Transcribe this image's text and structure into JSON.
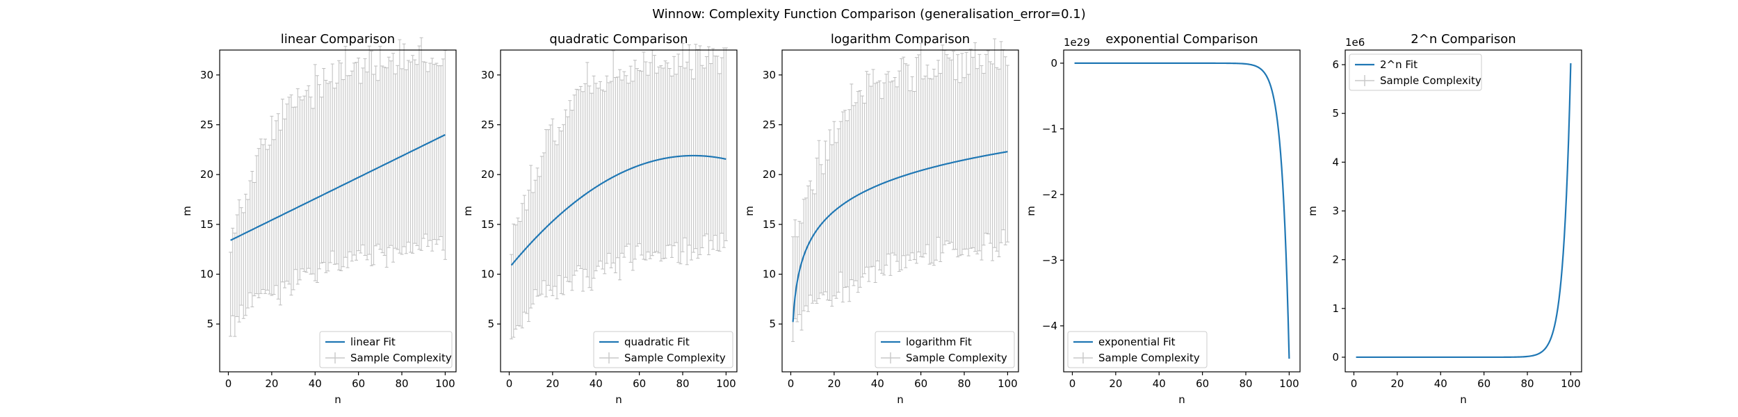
{
  "figure": {
    "suptitle": "Winnow: Complexity Function Comparison (generalisation_error=0.1)"
  },
  "colors": {
    "fit": "#1f77b4",
    "sample": "#c8c8c8",
    "sample_cap": "#bdbdbd"
  },
  "chart_data": [
    {
      "type": "line",
      "title": "linear Comparison",
      "xlabel": "n",
      "ylabel": "m",
      "xlim": [
        -4,
        105
      ],
      "ylim": [
        0.2,
        32.5
      ],
      "xticks": [
        "0",
        "20",
        "40",
        "60",
        "80",
        "100"
      ],
      "yticks": [
        "5",
        "10",
        "15",
        "20",
        "25",
        "30"
      ],
      "offset_text": "",
      "legend": {
        "loc": "lower right",
        "entries": [
          "linear Fit",
          "Sample Complexity"
        ]
      },
      "fit": {
        "name": "linear Fit",
        "kind": "linear",
        "x_range": [
          1,
          100
        ],
        "y_start": 13.4,
        "y_end": 24.0
      },
      "sample": {
        "name": "Sample Complexity",
        "n_points": 100
      }
    },
    {
      "type": "line",
      "title": "quadratic Comparison",
      "xlabel": "n",
      "ylabel": "m",
      "xlim": [
        -4,
        105
      ],
      "ylim": [
        0.2,
        32.5
      ],
      "xticks": [
        "0",
        "20",
        "40",
        "60",
        "80",
        "100"
      ],
      "yticks": [
        "5",
        "10",
        "15",
        "20",
        "25",
        "30"
      ],
      "offset_text": "",
      "legend": {
        "loc": "lower right",
        "entries": [
          "quadratic Fit",
          "Sample Complexity"
        ]
      },
      "fit": {
        "name": "quadratic Fit",
        "kind": "quadratic",
        "x_range": [
          1,
          100
        ],
        "y_start": 10.9,
        "vertex_x": 85,
        "y_peak": 21.9
      },
      "sample": {
        "name": "Sample Complexity",
        "n_points": 100
      }
    },
    {
      "type": "line",
      "title": "logarithm Comparison",
      "xlabel": "n",
      "ylabel": "m",
      "xlim": [
        -4,
        105
      ],
      "ylim": [
        0.2,
        32.5
      ],
      "xticks": [
        "0",
        "20",
        "40",
        "60",
        "80",
        "100"
      ],
      "yticks": [
        "5",
        "10",
        "15",
        "20",
        "25",
        "30"
      ],
      "offset_text": "",
      "legend": {
        "loc": "lower right",
        "entries": [
          "logarithm Fit",
          "Sample Complexity"
        ]
      },
      "fit": {
        "name": "logarithm Fit",
        "kind": "logarithm",
        "x_range": [
          1,
          100
        ],
        "y_start": 5.2,
        "y_end": 22.3
      },
      "sample": {
        "name": "Sample Complexity",
        "n_points": 100
      }
    },
    {
      "type": "line",
      "title": "exponential Comparison",
      "xlabel": "n",
      "ylabel": "m",
      "xlim": [
        -4,
        105
      ],
      "ylim": [
        -4.7,
        0.2
      ],
      "xticks": [
        "0",
        "20",
        "40",
        "60",
        "80",
        "100"
      ],
      "yticks": [
        "0",
        "−1",
        "−2",
        "−3",
        "−4"
      ],
      "offset_text": "1e29",
      "legend": {
        "loc": "lower left",
        "entries": [
          "exponential Fit",
          "Sample Complexity"
        ]
      },
      "fit": {
        "name": "exponential Fit",
        "kind": "exponential_neg",
        "x_range": [
          1,
          100
        ],
        "y_start": 0,
        "y_end": -4.5,
        "scale": "1e29"
      },
      "sample": {
        "name": "Sample Complexity",
        "n_points": 100
      }
    },
    {
      "type": "line",
      "title": "2^n Comparison",
      "xlabel": "n",
      "ylabel": "m",
      "xlim": [
        -4,
        105
      ],
      "ylim": [
        -0.3,
        6.3
      ],
      "xticks": [
        "0",
        "20",
        "40",
        "60",
        "80",
        "100"
      ],
      "yticks": [
        "0",
        "1",
        "2",
        "3",
        "4",
        "5",
        "6"
      ],
      "offset_text": "1e6",
      "legend": {
        "loc": "upper left",
        "entries": [
          "2^n Fit",
          "Sample Complexity"
        ]
      },
      "fit": {
        "name": "2^n Fit",
        "kind": "exponential_pos",
        "x_range": [
          1,
          100
        ],
        "y_start": 0,
        "y_end": 6.03,
        "scale": "1e6"
      },
      "sample": {
        "name": "Sample Complexity",
        "n_points": 100
      }
    }
  ]
}
